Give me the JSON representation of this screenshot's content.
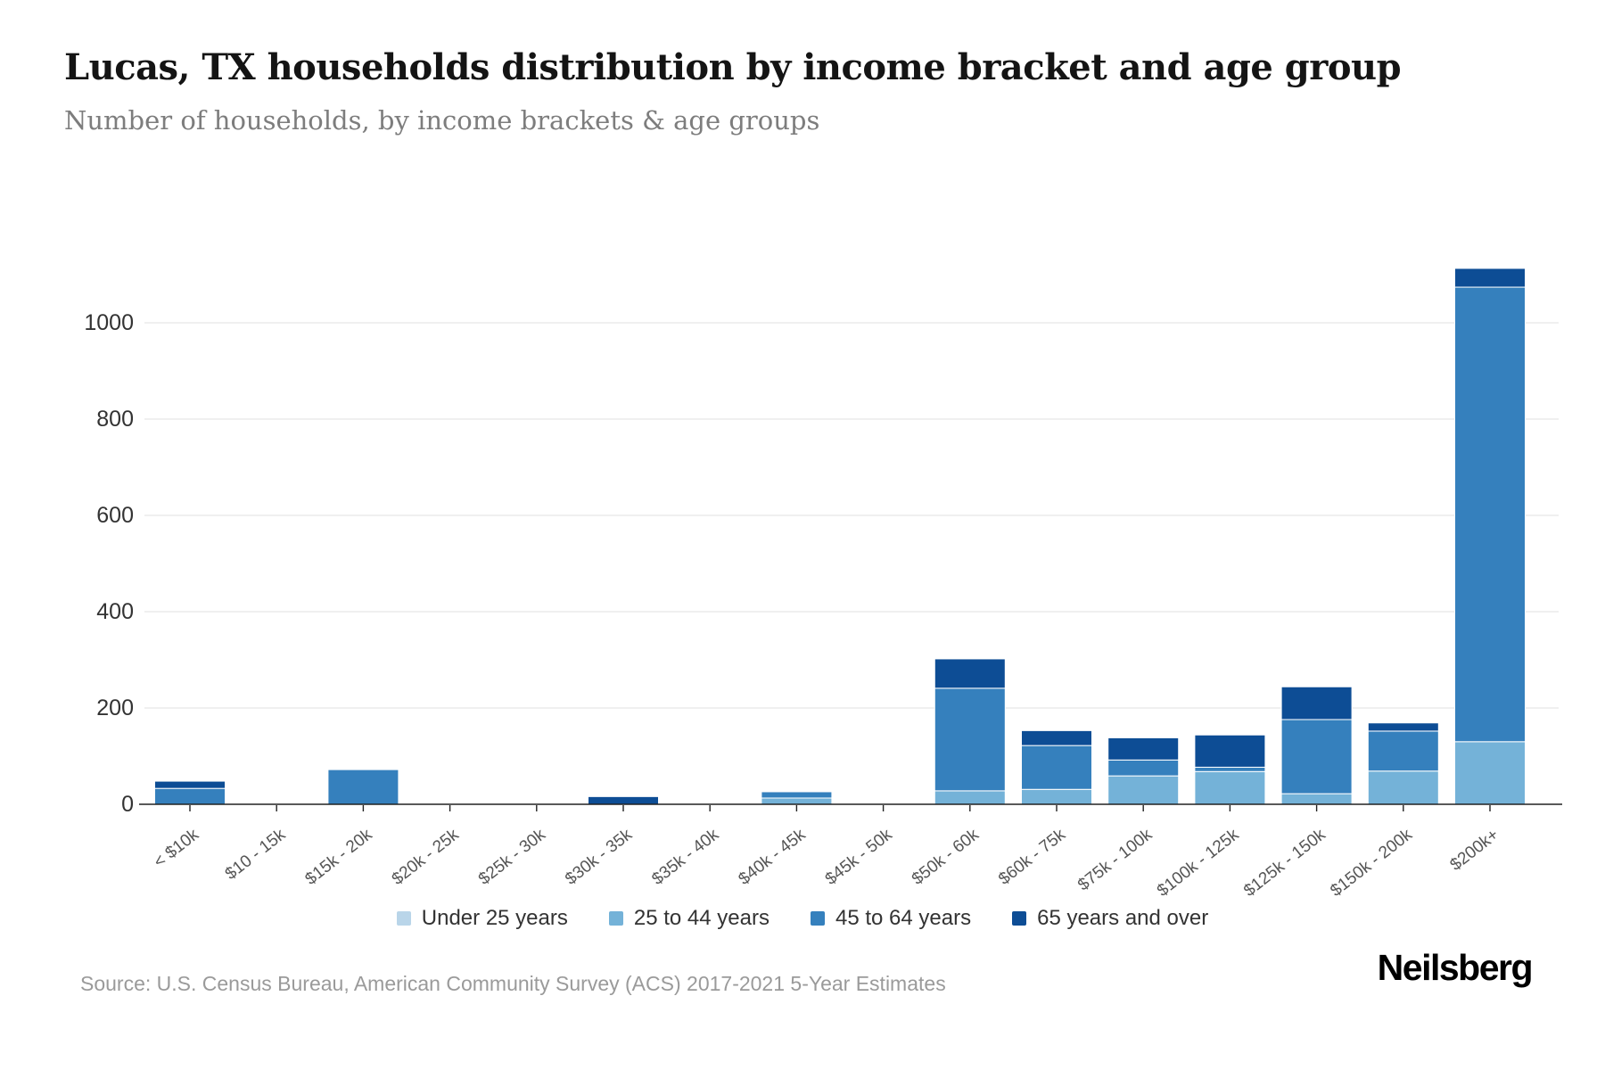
{
  "header": {
    "title": "Lucas, TX households distribution by income bracket and age group",
    "subtitle": "Number of households, by income brackets & age groups"
  },
  "footer": {
    "source": "Source: U.S. Census Bureau, American Community Survey (ACS) 2017-2021 5-Year Estimates",
    "logo_text": "Neilsberg"
  },
  "chart_data": {
    "type": "bar",
    "stacked": true,
    "title": "Lucas, TX households distribution by income bracket and age group",
    "subtitle": "Number of households, by income brackets & age groups",
    "xlabel": "",
    "ylabel": "",
    "categories": [
      "< $10k",
      "$10 - 15k",
      "$15k - 20k",
      "$20k - 25k",
      "$25k - 30k",
      "$30k - 35k",
      "$35k - 40k",
      "$40k - 45k",
      "$45k - 50k",
      "$50k - 60k",
      "$60k - 75k",
      "$75k - 100k",
      "$100k - 125k",
      "$125k - 150k",
      "$150k - 200k",
      "$200k+"
    ],
    "series": [
      {
        "name": "Under 25 years",
        "color": "#b9d5e9",
        "values": [
          0,
          0,
          0,
          0,
          0,
          0,
          0,
          0,
          0,
          0,
          0,
          0,
          0,
          0,
          0,
          0
        ]
      },
      {
        "name": "25 to 44 years",
        "color": "#74b2d8",
        "values": [
          0,
          0,
          0,
          0,
          0,
          0,
          0,
          13,
          0,
          28,
          31,
          59,
          68,
          22,
          69,
          130
        ]
      },
      {
        "name": "45 to 64 years",
        "color": "#3580bd",
        "values": [
          33,
          0,
          72,
          0,
          0,
          0,
          0,
          13,
          0,
          213,
          91,
          33,
          9,
          154,
          83,
          944
        ]
      },
      {
        "name": "65 years and over",
        "color": "#0d4d95",
        "values": [
          15,
          0,
          0,
          0,
          0,
          16,
          0,
          0,
          0,
          61,
          31,
          46,
          67,
          68,
          17,
          39
        ]
      }
    ],
    "totals": [
      48,
      0,
      72,
      0,
      0,
      16,
      0,
      26,
      0,
      302,
      153,
      138,
      144,
      244,
      169,
      1113
    ],
    "ylim": [
      0,
      1100
    ],
    "yticks": [
      0,
      200,
      400,
      600,
      800,
      1000
    ],
    "grid": "horizontal",
    "legend_position": "bottom",
    "xticklabel_rotation": -38,
    "colors": {
      "axis": "#222222",
      "gridline": "#ececec",
      "tick_label": "#333333",
      "x_label": "#555555",
      "segment_separator": "#ffffff"
    }
  }
}
